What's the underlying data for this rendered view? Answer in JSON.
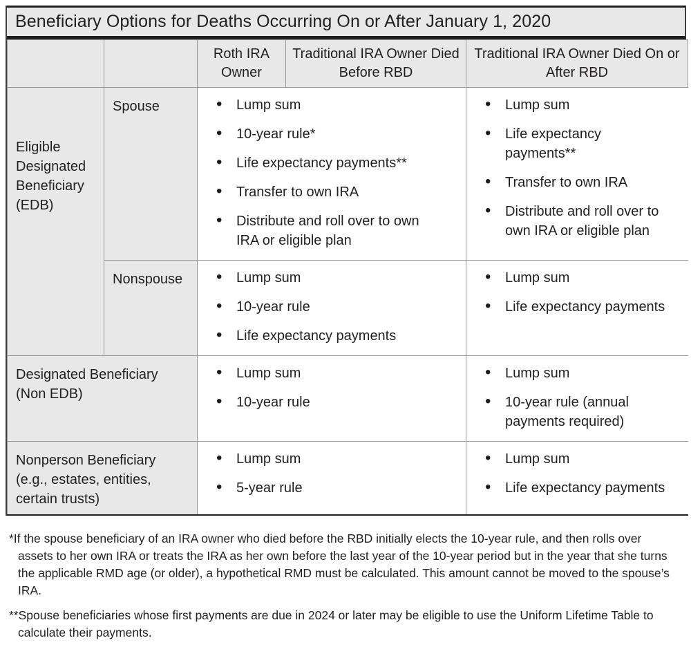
{
  "title": "Beneficiary Options for Deaths Occurring On or After January 1, 2020",
  "table": {
    "header": {
      "col_roth": "Roth IRA Owner",
      "col_trad_before": "Traditional IRA Owner Died Before RBD",
      "col_trad_after": "Traditional IRA Owner Died On or After RBD"
    },
    "rows": [
      {
        "group_label": "Eligible\nDesignated\nBeneficiary\n(EDB)",
        "sub_label": "Spouse",
        "options_roth_or_before": [
          "Lump sum",
          "10-year rule*",
          "Life expectancy payments**",
          "Transfer to own IRA",
          "Distribute and roll over to own\nIRA or eligible plan"
        ],
        "options_after": [
          "Lump sum",
          "Life expectancy\npayments**",
          "Transfer to own IRA",
          "Distribute and roll over to\nown IRA or eligible plan"
        ]
      },
      {
        "sub_label": "Nonspouse",
        "options_roth_or_before": [
          "Lump sum",
          "10-year rule",
          "Life expectancy payments"
        ],
        "options_after": [
          "Lump sum",
          "Life expectancy payments"
        ]
      },
      {
        "group_label": "Designated Beneficiary\n(Non EDB)",
        "options_roth_or_before": [
          "Lump sum",
          "10-year rule"
        ],
        "options_after": [
          "Lump sum",
          "10-year rule (annual\npayments required)"
        ]
      },
      {
        "group_label": "Nonperson Beneficiary\n(e.g., estates, entities,\ncertain trusts)",
        "options_roth_or_before": [
          "Lump sum",
          "5-year rule"
        ],
        "options_after": [
          "Lump sum",
          "Life expectancy payments"
        ]
      }
    ]
  },
  "footnotes": [
    "*If the spouse beneficiary of an IRA owner who died before the RBD initially elects the 10-year rule, and then rolls over assets to her own IRA or treats the IRA as her own before the last year of the 10-year period but in the year that she turns the applicable RMD age (or older), a hypothetical RMD must be calculated. This amount cannot be moved to the spouse’s IRA.",
    "**Spouse beneficiaries whose first payments are due in 2024 or later may be eligible to use the Uniform Lifetime Table to calculate their payments."
  ],
  "colors": {
    "cell-bg": "#e8e8e8",
    "grid": "#999999",
    "heavy": "#1f1f1f",
    "ink": "#231f20",
    "page": "#ffffff"
  }
}
